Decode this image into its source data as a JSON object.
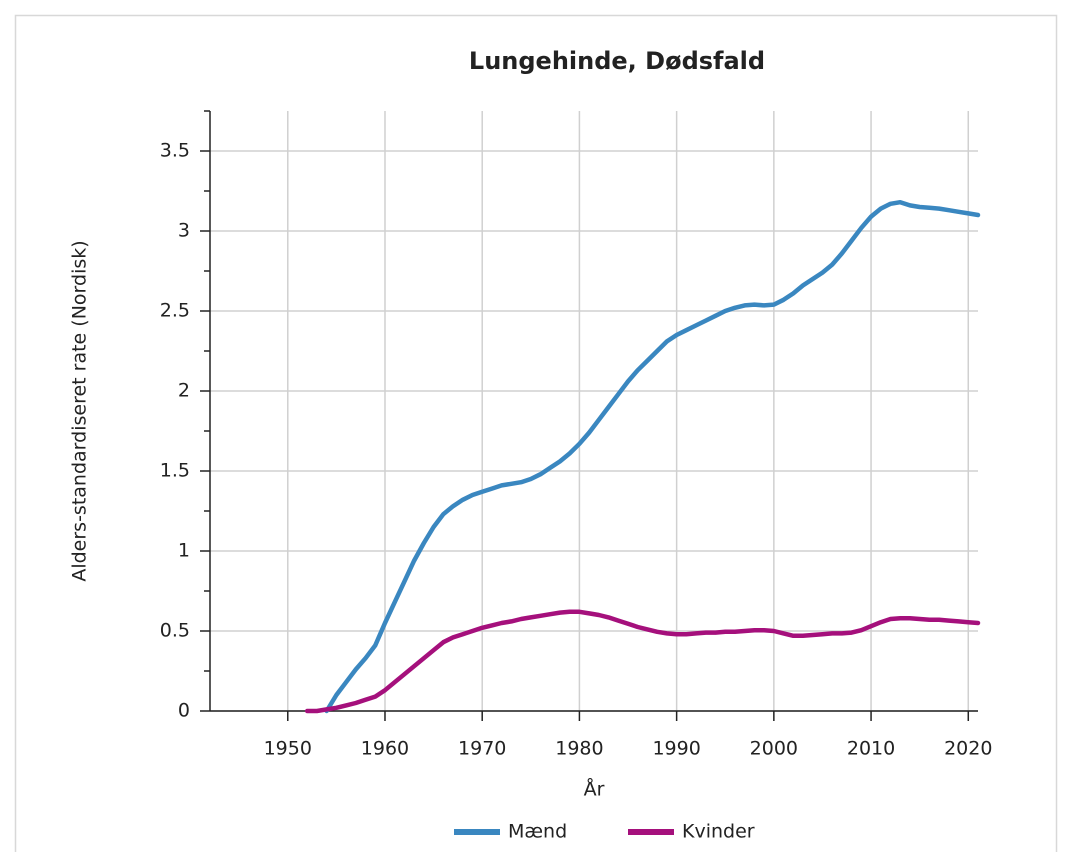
{
  "chart_data": {
    "type": "line",
    "title": "Lungehinde, Dødsfald",
    "x_label": "År",
    "y_label": "Alders-standardiseret rate (Nordisk)",
    "x": [
      1952,
      1953,
      1954,
      1955,
      1956,
      1957,
      1958,
      1959,
      1960,
      1961,
      1962,
      1963,
      1964,
      1965,
      1966,
      1967,
      1968,
      1969,
      1970,
      1971,
      1972,
      1973,
      1974,
      1975,
      1976,
      1977,
      1978,
      1979,
      1980,
      1981,
      1982,
      1983,
      1984,
      1985,
      1986,
      1987,
      1988,
      1989,
      1990,
      1991,
      1992,
      1993,
      1994,
      1995,
      1996,
      1997,
      1998,
      1999,
      2000,
      2001,
      2002,
      2003,
      2004,
      2005,
      2006,
      2007,
      2008,
      2009,
      2010,
      2011,
      2012,
      2013,
      2014,
      2015,
      2016,
      2017,
      2018,
      2019,
      2020,
      2021
    ],
    "series": [
      {
        "name": "Mænd",
        "color": "#3a87c0",
        "values": [
          null,
          null,
          0,
          0.1,
          0.18,
          0.26,
          0.33,
          0.41,
          0.55,
          0.68,
          0.81,
          0.94,
          1.05,
          1.15,
          1.23,
          1.28,
          1.32,
          1.35,
          1.37,
          1.39,
          1.41,
          1.42,
          1.43,
          1.45,
          1.48,
          1.52,
          1.56,
          1.61,
          1.67,
          1.74,
          1.82,
          1.9,
          1.98,
          2.06,
          2.13,
          2.19,
          2.25,
          2.31,
          2.35,
          2.38,
          2.41,
          2.44,
          2.47,
          2.5,
          2.52,
          2.535,
          2.54,
          2.535,
          2.54,
          2.57,
          2.61,
          2.66,
          2.7,
          2.74,
          2.79,
          2.86,
          2.94,
          3.02,
          3.09,
          3.14,
          3.17,
          3.18,
          3.16,
          3.15,
          3.145,
          3.14,
          3.13,
          3.12,
          3.11,
          3.1
        ]
      },
      {
        "name": "Kvinder",
        "color": "#a5107c",
        "values": [
          0,
          0,
          0.01,
          0.02,
          0.035,
          0.05,
          0.07,
          0.09,
          0.13,
          0.18,
          0.23,
          0.28,
          0.33,
          0.38,
          0.43,
          0.46,
          0.48,
          0.5,
          0.52,
          0.535,
          0.55,
          0.56,
          0.575,
          0.585,
          0.595,
          0.605,
          0.615,
          0.62,
          0.62,
          0.61,
          0.6,
          0.585,
          0.565,
          0.545,
          0.525,
          0.51,
          0.495,
          0.485,
          0.48,
          0.48,
          0.485,
          0.49,
          0.49,
          0.495,
          0.495,
          0.5,
          0.505,
          0.505,
          0.5,
          0.485,
          0.47,
          0.47,
          0.475,
          0.48,
          0.485,
          0.485,
          0.49,
          0.505,
          0.53,
          0.555,
          0.575,
          0.58,
          0.58,
          0.575,
          0.57,
          0.57,
          0.565,
          0.56,
          0.555,
          0.55
        ]
      }
    ],
    "xlim": [
      1942,
      2021
    ],
    "ylim": [
      0,
      3.75
    ],
    "xticks": [
      1950,
      1960,
      1970,
      1980,
      1990,
      2000,
      2010,
      2020
    ],
    "yticks": [
      0,
      0.5,
      1,
      1.5,
      2,
      2.5,
      3,
      3.5
    ],
    "y_minor_ticks": [
      0.25,
      0.75,
      1.25,
      1.75,
      2.25,
      2.75,
      3.25,
      3.75
    ],
    "grid": true,
    "legend": "bottom"
  }
}
